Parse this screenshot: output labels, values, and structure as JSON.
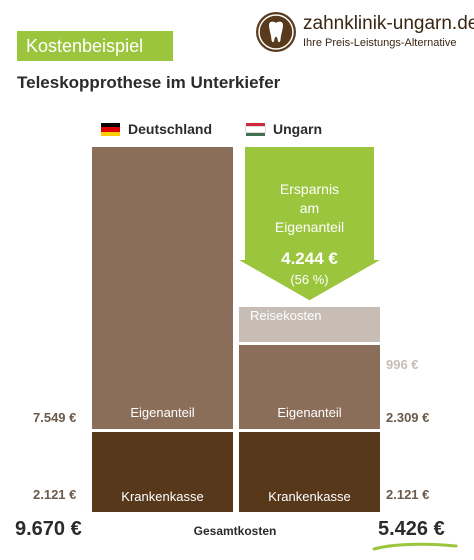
{
  "header": {
    "badge": "Kostenbeispiel",
    "subtitle": "Teleskopprothese im Unterkiefer"
  },
  "logo": {
    "name": "zahnklinik-ungarn.de",
    "tagline": "Ihre Preis-Leistungs-Alternative"
  },
  "colors": {
    "accent_green": "#9bc53d",
    "eigenanteil": "#8b6e5a",
    "krankenkasse": "#57381b",
    "reisekosten": "#c8bdb5",
    "logo_brown": "#5a3a1c"
  },
  "chart_data": {
    "type": "bar",
    "stacked": true,
    "categories": [
      "Deutschland",
      "Ungarn"
    ],
    "series": [
      {
        "name": "Krankenkasse",
        "values": [
          2121,
          2121
        ]
      },
      {
        "name": "Eigenanteil",
        "values": [
          7549,
          2309
        ]
      },
      {
        "name": "Reisekosten",
        "values": [
          0,
          996
        ]
      }
    ],
    "value_labels": {
      "de_krankenkasse": "2.121 €",
      "de_eigenanteil": "7.549 €",
      "hu_krankenkasse": "2.121 €",
      "hu_eigenanteil": "2.309 €",
      "hu_reisekosten": "996 €"
    },
    "savings": {
      "line1": "Ersparnis",
      "line2": "am",
      "line3": "Eigenanteil",
      "amount": "4.244 €",
      "percent": "(56 %)",
      "value": 4244
    },
    "totals": {
      "deutschland": "9.670 €",
      "ungarn": "5.426 €",
      "label": "Gesamtkosten"
    },
    "segment_labels": {
      "eigenanteil": "Eigenanteil",
      "krankenkasse": "Krankenkasse",
      "reisekosten": "Reisekosten"
    }
  }
}
